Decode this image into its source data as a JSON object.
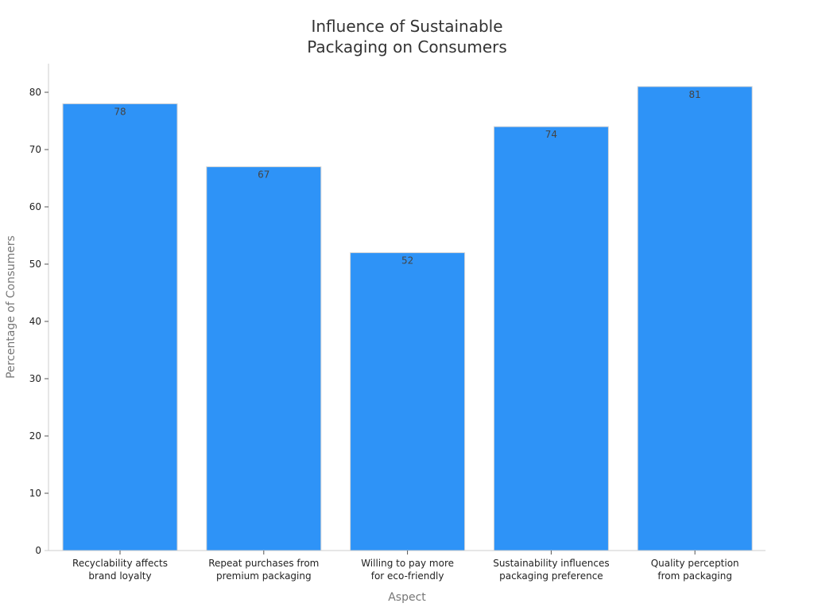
{
  "chart_data": {
    "type": "bar",
    "title_lines": [
      "Influence of Sustainable",
      "Packaging on Consumers"
    ],
    "xlabel": "Aspect",
    "ylabel": "Percentage of Consumers",
    "ylim": [
      0,
      85
    ],
    "yticks": [
      0,
      10,
      20,
      30,
      40,
      50,
      60,
      70,
      80
    ],
    "grid": false,
    "bar_color": "#2e93f7",
    "categories": [
      [
        "Recyclability affects",
        "brand loyalty"
      ],
      [
        "Repeat purchases from",
        "premium packaging"
      ],
      [
        "Willing to pay more",
        "for eco-friendly"
      ],
      [
        "Sustainability influences",
        "packaging preference"
      ],
      [
        "Quality perception",
        "from packaging"
      ]
    ],
    "values": [
      78,
      67,
      52,
      74,
      81
    ]
  }
}
